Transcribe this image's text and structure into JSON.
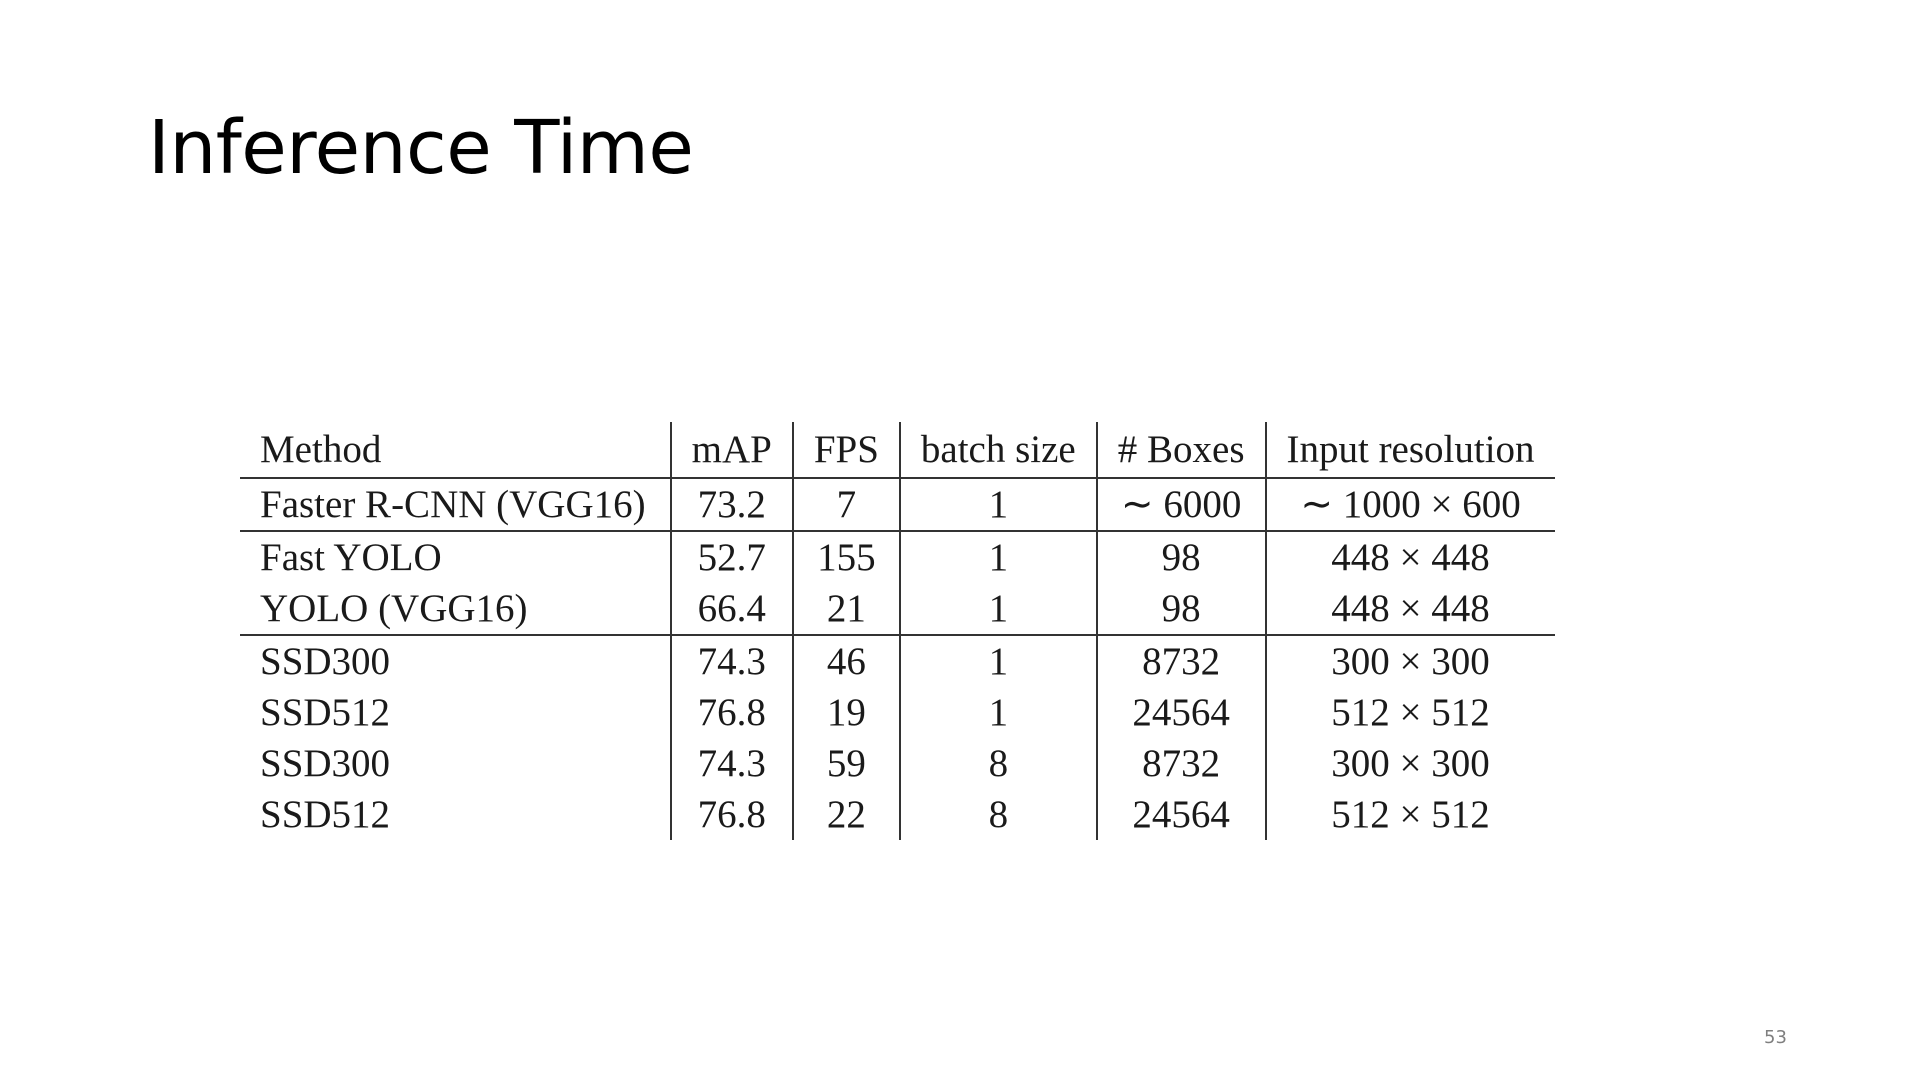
{
  "slide": {
    "title": "Inference Time",
    "page_number": "53"
  },
  "table": {
    "headers": [
      "Method",
      "mAP",
      "FPS",
      "batch size",
      "# Boxes",
      "Input resolution"
    ],
    "rows": [
      [
        "Faster R-CNN (VGG16)",
        "73.2",
        "7",
        "1",
        "∼ 6000",
        "∼ 1000 × 600"
      ],
      [
        "Fast YOLO",
        "52.7",
        "155",
        "1",
        "98",
        "448 × 448"
      ],
      [
        "YOLO (VGG16)",
        "66.4",
        "21",
        "1",
        "98",
        "448 × 448"
      ],
      [
        "SSD300",
        "74.3",
        "46",
        "1",
        "8732",
        "300 × 300"
      ],
      [
        "SSD512",
        "76.8",
        "19",
        "1",
        "24564",
        "512 × 512"
      ],
      [
        "SSD300",
        "74.3",
        "59",
        "8",
        "8732",
        "300 × 300"
      ],
      [
        "SSD512",
        "76.8",
        "22",
        "8",
        "24564",
        "512 × 512"
      ]
    ],
    "group_ends": [
      0,
      2
    ]
  },
  "colors": {
    "background": "#ffffff",
    "title_text": "#000000",
    "table_text": "#1a1a1a",
    "rule": "#333333",
    "page_number": "#7f7f7f"
  }
}
